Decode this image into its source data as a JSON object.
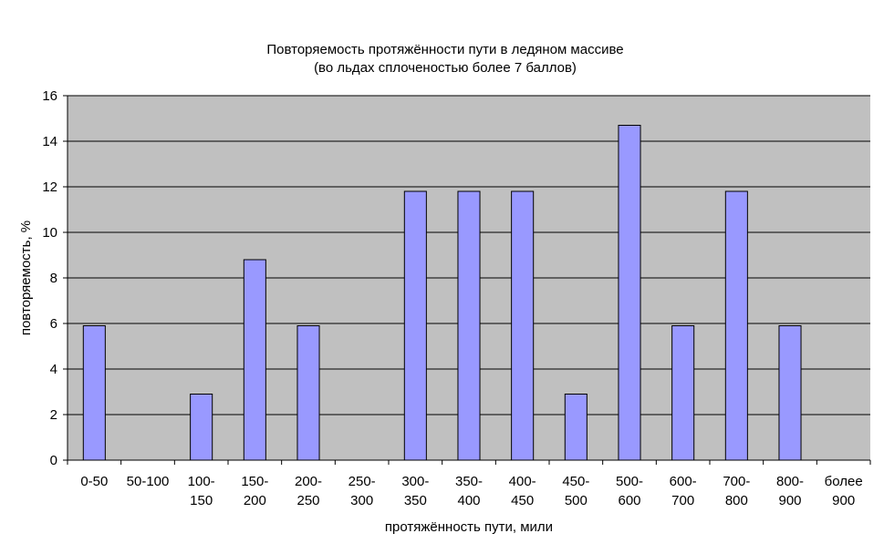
{
  "chart_data": {
    "type": "bar",
    "title": "Повторяемость протяжённости пути в ледяном массиве",
    "subtitle": "(во льдах сплоченостью более 7 баллов)",
    "xlabel": "протяжённость пути, мили",
    "ylabel": "повторяемость, %",
    "ylim": [
      0,
      16
    ],
    "yticks": [
      0,
      2,
      4,
      6,
      8,
      10,
      12,
      14,
      16
    ],
    "grid": true,
    "legend": "none",
    "categories": [
      [
        "0-50"
      ],
      [
        "50-100"
      ],
      [
        "100-",
        "150"
      ],
      [
        "150-",
        "200"
      ],
      [
        "200-",
        "250"
      ],
      [
        "250-",
        "300"
      ],
      [
        "300-",
        "350"
      ],
      [
        "350-",
        "400"
      ],
      [
        "400-",
        "450"
      ],
      [
        "450-",
        "500"
      ],
      [
        "500-",
        "600"
      ],
      [
        "600-",
        "700"
      ],
      [
        "700-",
        "800"
      ],
      [
        "800-",
        "900"
      ],
      [
        "более",
        "900"
      ]
    ],
    "values": [
      5.9,
      0,
      2.9,
      8.8,
      5.9,
      0,
      11.8,
      11.8,
      11.8,
      2.9,
      14.7,
      5.9,
      11.8,
      5.9,
      0
    ],
    "colors": {
      "bar_fill": "#9999ff",
      "bar_stroke": "#000000",
      "plot_background": "#c0c0c0",
      "gridline": "#000000",
      "axis": "#000000"
    }
  }
}
